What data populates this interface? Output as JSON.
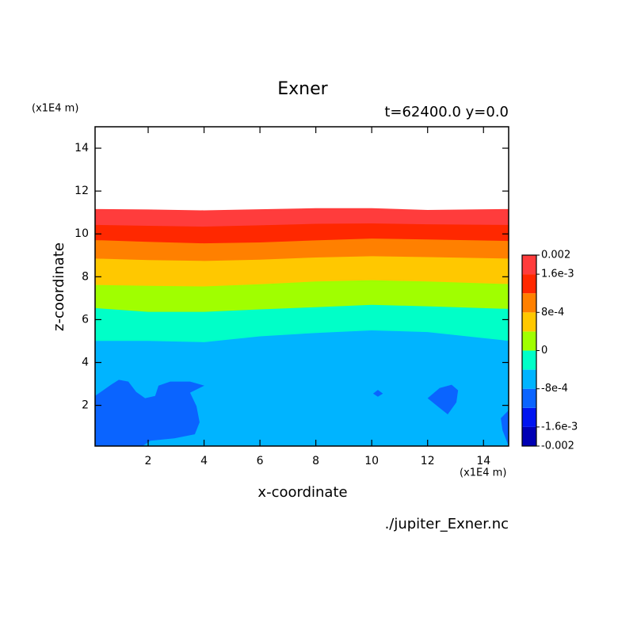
{
  "chart_data": {
    "type": "contour",
    "title": "Exner",
    "subtitle": "t=62400.0 y=0.0",
    "xlabel": "x-coordinate",
    "ylabel": "z-coordinate",
    "x_unit": "(x1E4 m)",
    "y_unit": "(x1E4 m)",
    "footer": "./jupiter_Exner.nc",
    "xlim": [
      0.1,
      14.9
    ],
    "ylim": [
      0.1,
      15
    ],
    "xticks": [
      2,
      4,
      6,
      8,
      10,
      12,
      14
    ],
    "yticks": [
      2,
      4,
      6,
      8,
      10,
      12,
      14
    ],
    "levels": [
      -0.002,
      -0.0016,
      -0.0012,
      -0.0008,
      -0.0004,
      0,
      0.0004,
      0.0008,
      0.0012,
      0.0016,
      0.002
    ],
    "colors": [
      "#0000b4",
      "#0014f0",
      "#0a64ff",
      "#00b4ff",
      "#00ffc8",
      "#a0ff00",
      "#ffc800",
      "#ff8000",
      "#ff2800",
      "#ff3c3c"
    ],
    "colorbar_ticks": [
      {
        "value": 0.002,
        "label": "0.002"
      },
      {
        "value": 0.0016,
        "label": "1.6e-3"
      },
      {
        "value": 0.0008,
        "label": "8e-4"
      },
      0,
      {
        "value": -0.0008,
        "label": "-8e-4"
      },
      {
        "value": -0.0016,
        "label": "-1.6e-3"
      },
      {
        "value": -0.002,
        "label": "-0.002"
      }
    ],
    "contours": [
      {
        "level": 0.002,
        "x": [
          0.1,
          2,
          4,
          6,
          8,
          10,
          12,
          14.9
        ],
        "z": [
          11.16,
          11.14,
          11.1,
          11.15,
          11.2,
          11.2,
          11.12,
          11.16
        ]
      },
      {
        "level": 0.0016,
        "x": [
          0.1,
          2,
          4,
          6,
          8,
          10,
          12,
          14.9
        ],
        "z": [
          10.42,
          10.38,
          10.34,
          10.4,
          10.47,
          10.49,
          10.45,
          10.42
        ]
      },
      {
        "level": 0.0012,
        "x": [
          0.1,
          2,
          4,
          6,
          8,
          10,
          12,
          14.9
        ],
        "z": [
          9.71,
          9.63,
          9.56,
          9.6,
          9.7,
          9.78,
          9.74,
          9.67
        ]
      },
      {
        "level": 0.0008,
        "x": [
          0.1,
          2,
          4,
          6,
          8,
          10,
          12,
          14.9
        ],
        "z": [
          8.85,
          8.78,
          8.74,
          8.8,
          8.9,
          8.96,
          8.92,
          8.85
        ]
      },
      {
        "level": 0.0004,
        "x": [
          0.1,
          2,
          4,
          6,
          8,
          10,
          12,
          14.9
        ],
        "z": [
          7.62,
          7.58,
          7.55,
          7.65,
          7.78,
          7.84,
          7.78,
          7.66
        ]
      },
      {
        "level": 0,
        "x": [
          0.1,
          2,
          4,
          6,
          8,
          10,
          12,
          14.9
        ],
        "z": [
          6.54,
          6.36,
          6.36,
          6.48,
          6.58,
          6.69,
          6.62,
          6.5
        ]
      },
      {
        "level": -0.0004,
        "x": [
          0.1,
          2,
          4,
          6,
          8,
          10,
          12,
          14.9
        ],
        "z": [
          5.01,
          5.01,
          4.95,
          5.22,
          5.38,
          5.5,
          5.42,
          5.01
        ]
      }
    ],
    "patches": [
      {
        "level": -0.0008,
        "x": [
          0.1,
          0.67,
          0.95,
          1.29,
          1.57,
          1.89,
          2.25,
          2.37,
          2.79,
          3.5,
          4.01,
          3.5,
          3.73,
          3.84,
          3.67,
          2.94,
          2.08,
          1.8,
          0.1
        ],
        "z": [
          2.44,
          2.96,
          3.19,
          3.11,
          2.63,
          2.33,
          2.44,
          2.92,
          3.11,
          3.11,
          2.92,
          2.59,
          1.96,
          1.21,
          0.65,
          0.46,
          0.35,
          0.1,
          0.1
        ]
      },
      {
        "level": -0.0008,
        "x": [
          10.05,
          10.22,
          10.4,
          10.22
        ],
        "z": [
          2.55,
          2.72,
          2.55,
          2.4
        ]
      },
      {
        "level": -0.0008,
        "x": [
          12.0,
          12.43,
          12.86,
          13.09,
          13.03,
          12.72,
          12.43
        ],
        "z": [
          2.33,
          2.81,
          2.96,
          2.7,
          2.14,
          1.58,
          1.88
        ]
      },
      {
        "level": -0.0008,
        "x": [
          14.9,
          14.62,
          14.68,
          14.9
        ],
        "z": [
          1.77,
          1.4,
          0.84,
          0.1
        ]
      }
    ]
  }
}
